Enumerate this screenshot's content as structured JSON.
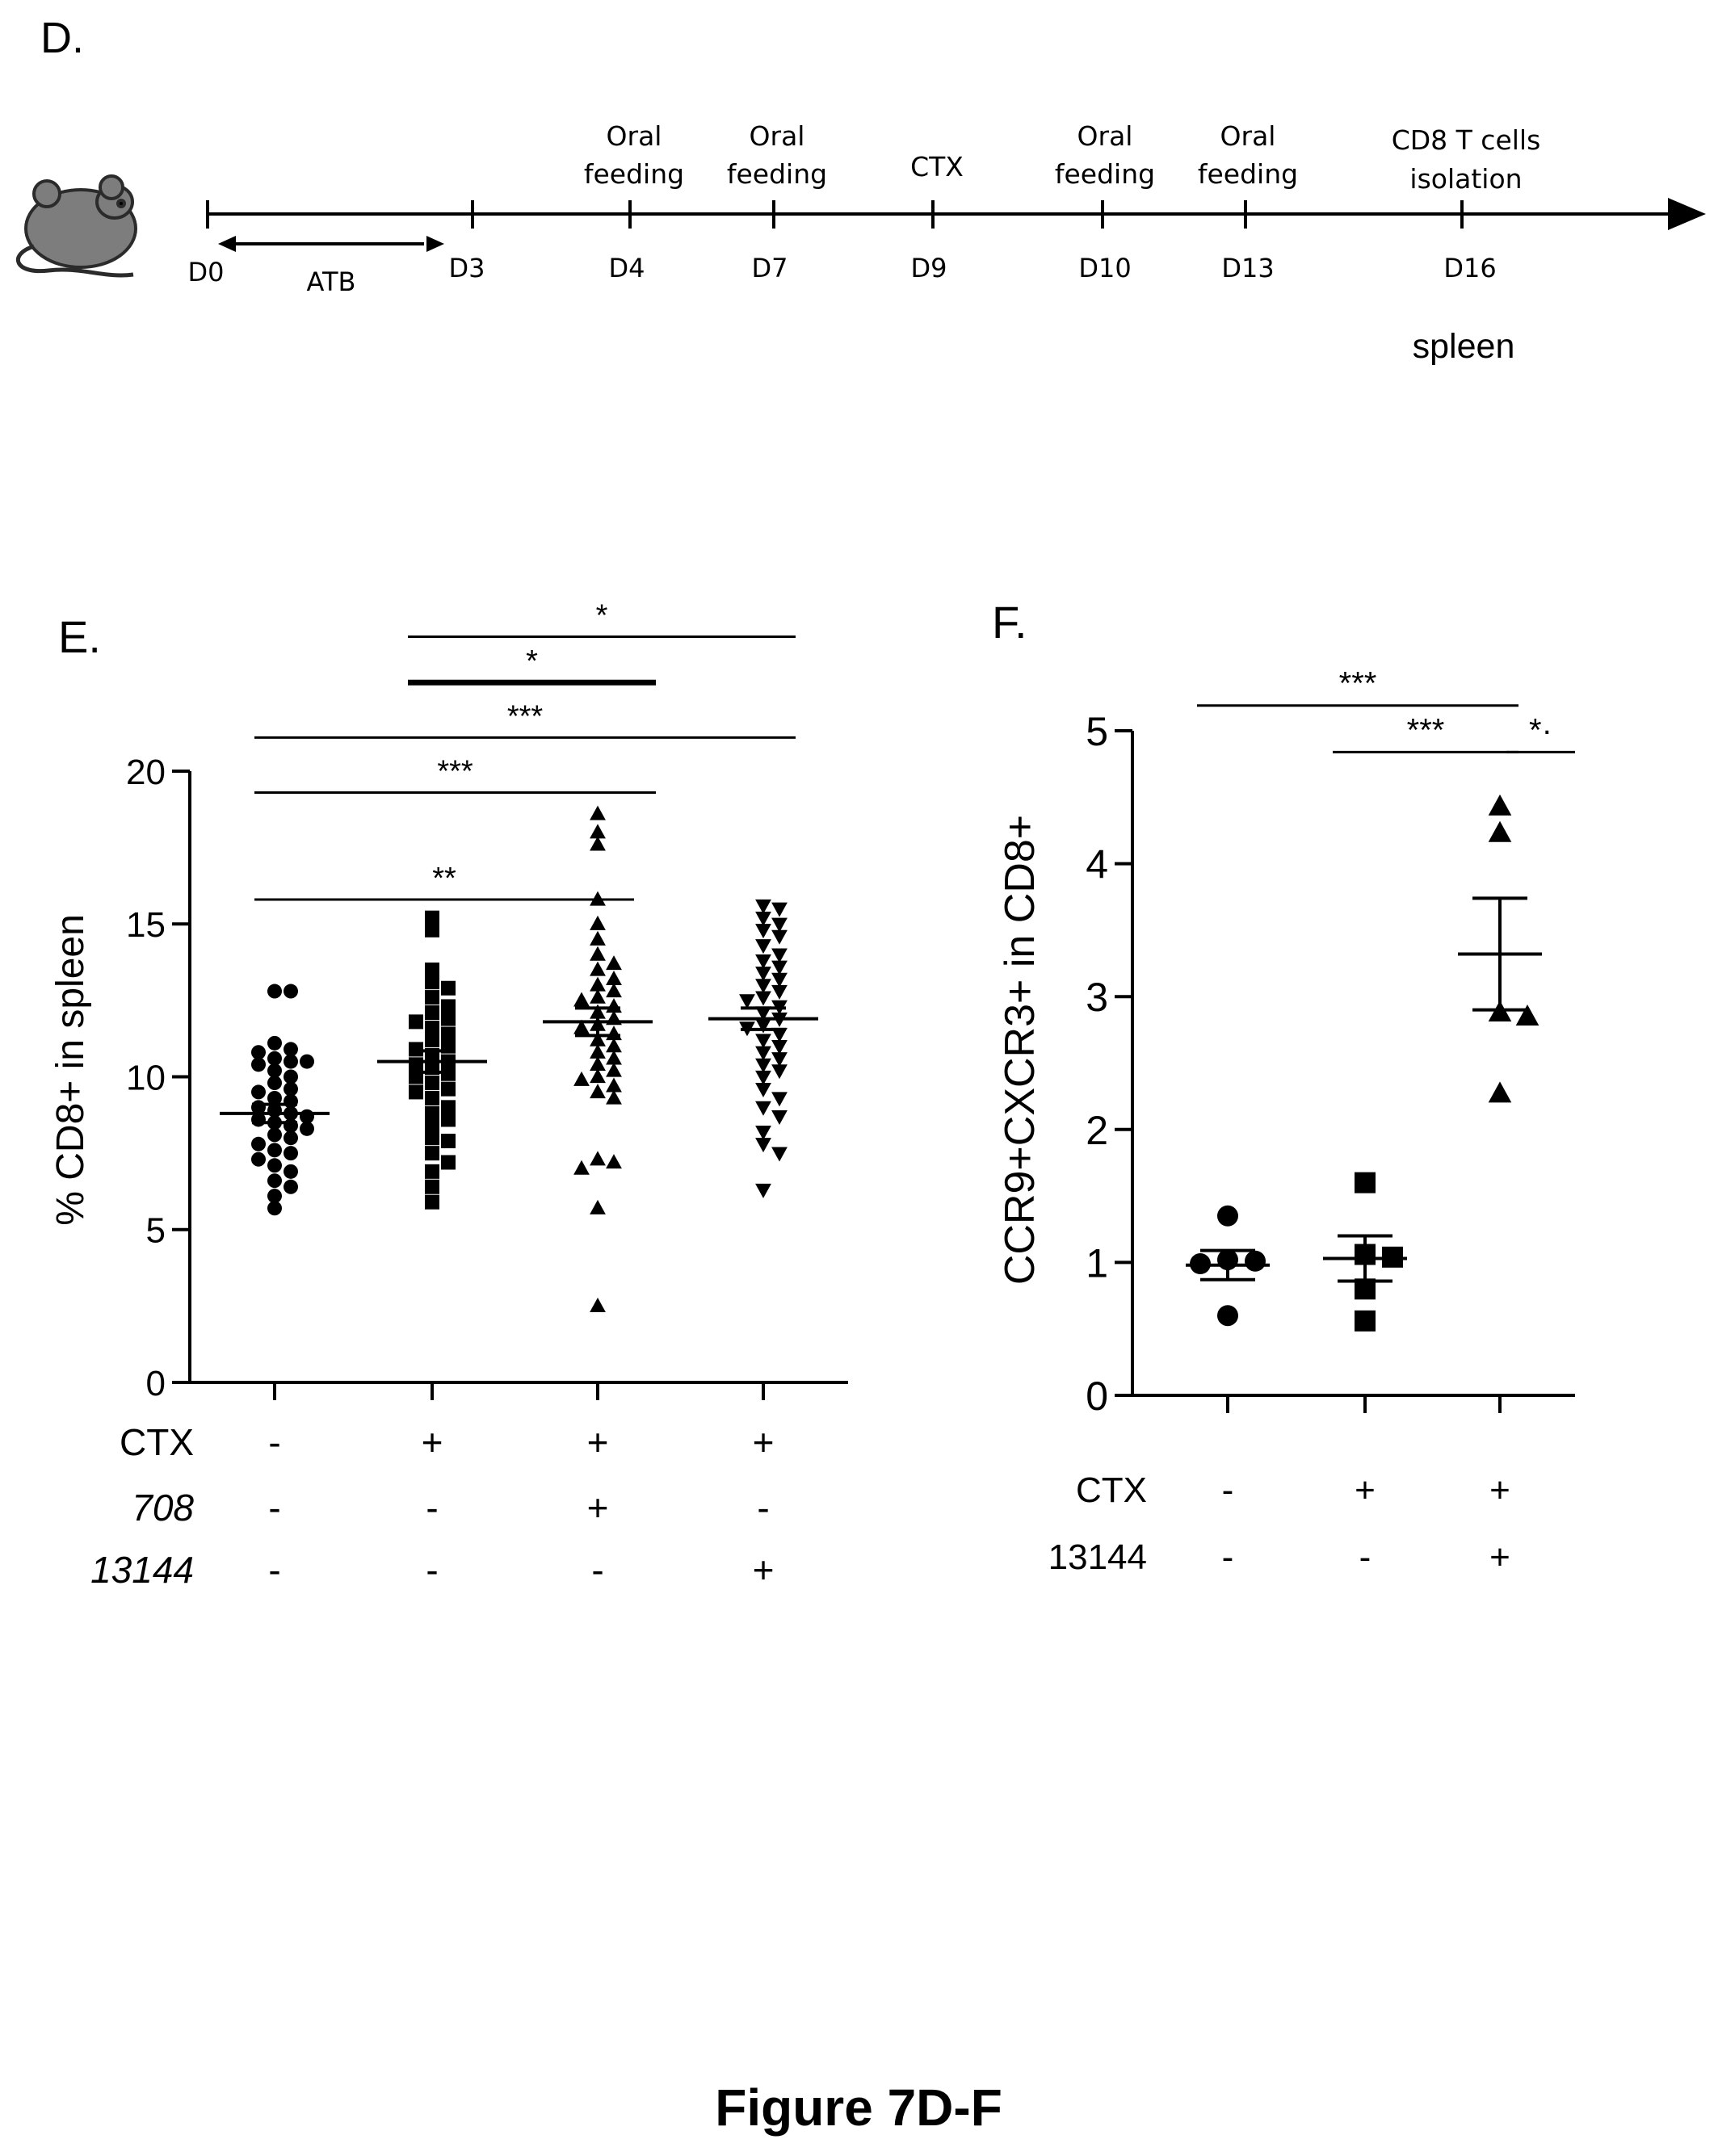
{
  "panel_d": {
    "label": "D.",
    "tissue_label": "spleen",
    "interval": {
      "label": "ATB",
      "from_day": "D0",
      "to_day": "D3"
    },
    "events": [
      {
        "day": "D0",
        "top": "",
        "bottom": ""
      },
      {
        "day": "D3",
        "top": "",
        "bottom": ""
      },
      {
        "day": "D4",
        "top": "Oral",
        "bottom": "feeding"
      },
      {
        "day": "D7",
        "top": "Oral",
        "bottom": "feeding"
      },
      {
        "day": "D9",
        "top": "",
        "bottom": "CTX"
      },
      {
        "day": "D10",
        "top": "Oral",
        "bottom": "feeding"
      },
      {
        "day": "D13",
        "top": "Oral",
        "bottom": "feeding"
      },
      {
        "day": "D16",
        "top": "CD8 T cells",
        "bottom": "isolation"
      }
    ]
  },
  "figure_caption": "Figure 7D-F",
  "colors": {
    "ink": "#000000",
    "background": "#ffffff"
  },
  "chart_data": [
    {
      "panel": "E.",
      "type": "scatter",
      "ylabel": "% CD8+ in spleen",
      "ylim": [
        0,
        20
      ],
      "yticks": [
        0,
        5,
        10,
        15,
        20
      ],
      "legend": "none",
      "grid": false,
      "condition_rows": [
        {
          "label": "CTX",
          "italic": false,
          "values": [
            "-",
            "+",
            "+",
            "+"
          ]
        },
        {
          "label": "708",
          "italic": true,
          "values": [
            "-",
            "-",
            "+",
            "-"
          ]
        },
        {
          "label": "13144",
          "italic": true,
          "values": [
            "-",
            "-",
            "-",
            "+"
          ]
        }
      ],
      "groups": [
        {
          "marker": "circle",
          "mean": 8.8,
          "sem": 0.3,
          "points": [
            12.8,
            12.8,
            11.1,
            10.9,
            10.8,
            10.6,
            10.5,
            10.5,
            10.4,
            10.2,
            10.0,
            9.8,
            9.6,
            9.5,
            9.3,
            9.2,
            9.0,
            8.9,
            8.8,
            8.7,
            8.6,
            8.5,
            8.4,
            8.3,
            8.1,
            8.0,
            7.8,
            7.6,
            7.5,
            7.3,
            7.1,
            6.9,
            6.6,
            6.4,
            6.1,
            5.7
          ]
        },
        {
          "marker": "square",
          "mean": 10.5,
          "sem": 0.35,
          "points": [
            15.2,
            14.8,
            13.5,
            13.1,
            12.9,
            12.6,
            12.3,
            12.1,
            11.9,
            11.8,
            11.6,
            11.4,
            11.2,
            11.0,
            10.9,
            10.7,
            10.5,
            10.4,
            10.3,
            10.1,
            10.0,
            9.8,
            9.6,
            9.5,
            9.3,
            9.0,
            8.8,
            8.6,
            8.4,
            8.0,
            7.9,
            7.5,
            7.2,
            6.9,
            6.4,
            5.9
          ]
        },
        {
          "marker": "triangle-up",
          "mean": 11.8,
          "sem": 0.45,
          "points": [
            18.6,
            18.0,
            17.6,
            15.8,
            15.0,
            14.5,
            14.0,
            13.7,
            13.5,
            13.2,
            13.0,
            12.8,
            12.6,
            12.5,
            12.3,
            12.1,
            11.9,
            11.7,
            11.6,
            11.4,
            11.2,
            11.0,
            10.8,
            10.6,
            10.4,
            10.2,
            10.0,
            9.9,
            9.7,
            9.5,
            9.3,
            7.3,
            7.2,
            7.0,
            5.7,
            2.5
          ]
        },
        {
          "marker": "triangle-down",
          "mean": 11.9,
          "sem": 0.35,
          "points": [
            15.6,
            15.5,
            15.2,
            15.0,
            14.8,
            14.6,
            14.3,
            14.0,
            13.8,
            13.6,
            13.4,
            13.2,
            13.0,
            12.8,
            12.6,
            12.5,
            12.3,
            12.1,
            11.9,
            11.7,
            11.6,
            11.4,
            11.2,
            11.0,
            10.8,
            10.6,
            10.4,
            10.2,
            10.0,
            9.6,
            9.3,
            9.0,
            8.7,
            8.2,
            7.8,
            7.5,
            6.3
          ]
        }
      ],
      "comparisons": [
        {
          "label": "**",
          "from": 0,
          "to": 1,
          "level": 15.8,
          "weight": "normal"
        },
        {
          "label": "***",
          "from": 0,
          "to": 2,
          "level": 19.3,
          "weight": "normal"
        },
        {
          "label": "***",
          "from": 0,
          "to": 3,
          "level": 21.1,
          "weight": "normal"
        },
        {
          "label": "*",
          "from": 1,
          "to": 2,
          "level": 22.9,
          "weight": "bold"
        },
        {
          "label": "*",
          "from": 1,
          "to": 3,
          "level": 24.4,
          "weight": "normal"
        }
      ]
    },
    {
      "panel": "F.",
      "type": "scatter",
      "ylabel": "CCR9+CXCR3+ in CD8+",
      "ylim": [
        0,
        5
      ],
      "yticks": [
        0,
        1,
        2,
        3,
        4,
        5
      ],
      "legend": "none",
      "grid": false,
      "condition_rows": [
        {
          "label": "CTX",
          "italic": false,
          "values": [
            "-",
            "+",
            "+"
          ]
        },
        {
          "label": "13144",
          "italic": false,
          "values": [
            "-",
            "-",
            "+"
          ]
        }
      ],
      "groups": [
        {
          "marker": "circle",
          "mean": 0.98,
          "sem": 0.11,
          "points": [
            1.35,
            1.02,
            1.01,
            0.99,
            0.6
          ]
        },
        {
          "marker": "square",
          "mean": 1.03,
          "sem": 0.17,
          "points": [
            1.6,
            1.06,
            1.04,
            0.8,
            0.56
          ]
        },
        {
          "marker": "triangle-up",
          "mean": 3.32,
          "sem": 0.42,
          "points": [
            4.43,
            4.23,
            2.88,
            2.85,
            2.27
          ]
        }
      ],
      "comparisons": [
        {
          "label": "***",
          "from": 0,
          "to": 2,
          "level": 5.19,
          "weight": "normal"
        },
        {
          "label": "***",
          "from": 1,
          "to": 2,
          "level": 4.84,
          "weight": "normal"
        },
        {
          "label": "*·",
          "from": 2,
          "to": 3,
          "level": 4.84,
          "weight": "normal"
        }
      ]
    }
  ]
}
